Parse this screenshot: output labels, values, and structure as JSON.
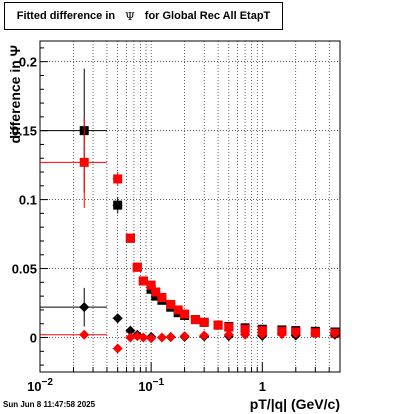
{
  "title": {
    "prefix": "Fitted difference in",
    "symbol": "Ψ",
    "suffix": "for Global Rec All EtapT"
  },
  "timestamp": "Sun Jun  8 11:47:58 2025",
  "chart_data": {
    "type": "scatter",
    "title": "Fitted difference in Ψ for Global Rec All EtapT",
    "xlabel": "pT/|q| (GeV/c)",
    "ylabel": "difference in Ψ",
    "x_scale": "log",
    "xlim": [
      0.01,
      5
    ],
    "ylim": [
      -0.025,
      0.215
    ],
    "grid": true,
    "y_ticks": [
      {
        "value": 0,
        "label": "0"
      },
      {
        "value": 0.05,
        "label": "0.05"
      },
      {
        "value": 0.1,
        "label": "0.1"
      },
      {
        "value": 0.15,
        "label": "0.15"
      },
      {
        "value": 0.2,
        "label": "0.2"
      }
    ],
    "x_ticks": [
      {
        "value": 0.01,
        "base": "10",
        "exp": "−2"
      },
      {
        "value": 0.1,
        "base": "10",
        "exp": "−1"
      },
      {
        "value": 1,
        "base": "1",
        "exp": ""
      }
    ],
    "series": [
      {
        "color": "#000000",
        "marker": "square",
        "points": [
          {
            "x": 0.025,
            "y": 0.15,
            "xerr": [
              0.01,
              0.04
            ],
            "yerr": 0.045
          },
          {
            "x": 0.05,
            "y": 0.096,
            "xerr": [
              0.045,
              0.055
            ],
            "yerr": 0.006
          },
          {
            "x": 0.065,
            "y": 0.072,
            "xerr": [
              0.06,
              0.07
            ],
            "yerr": 0.002
          },
          {
            "x": 0.075,
            "y": 0.051
          },
          {
            "x": 0.085,
            "y": 0.041
          },
          {
            "x": 0.1,
            "y": 0.035
          },
          {
            "x": 0.11,
            "y": 0.03
          },
          {
            "x": 0.125,
            "y": 0.027
          },
          {
            "x": 0.15,
            "y": 0.022
          },
          {
            "x": 0.175,
            "y": 0.018
          },
          {
            "x": 0.2,
            "y": 0.016
          },
          {
            "x": 0.25,
            "y": 0.013
          },
          {
            "x": 0.3,
            "y": 0.011
          },
          {
            "x": 0.4,
            "y": 0.009
          },
          {
            "x": 0.5,
            "y": 0.008
          },
          {
            "x": 0.7,
            "y": 0.007
          },
          {
            "x": 1.0,
            "y": 0.006
          },
          {
            "x": 1.5,
            "y": 0.0055
          },
          {
            "x": 2.0,
            "y": 0.005
          },
          {
            "x": 3.0,
            "y": 0.0045
          },
          {
            "x": 4.5,
            "y": 0.004
          }
        ]
      },
      {
        "color": "#ff0000",
        "marker": "square",
        "points": [
          {
            "x": 0.025,
            "y": 0.127,
            "xerr": [
              0.01,
              0.04
            ],
            "yerr": 0.033
          },
          {
            "x": 0.05,
            "y": 0.115,
            "xerr": [
              0.045,
              0.055
            ],
            "yerr": 0.005
          },
          {
            "x": 0.065,
            "y": 0.072,
            "xerr": [
              0.06,
              0.07
            ],
            "yerr": 0.002
          },
          {
            "x": 0.075,
            "y": 0.051
          },
          {
            "x": 0.085,
            "y": 0.041
          },
          {
            "x": 0.1,
            "y": 0.038
          },
          {
            "x": 0.11,
            "y": 0.033
          },
          {
            "x": 0.125,
            "y": 0.029
          },
          {
            "x": 0.15,
            "y": 0.024
          },
          {
            "x": 0.175,
            "y": 0.02
          },
          {
            "x": 0.2,
            "y": 0.017
          },
          {
            "x": 0.25,
            "y": 0.013
          },
          {
            "x": 0.3,
            "y": 0.011
          },
          {
            "x": 0.4,
            "y": 0.009
          },
          {
            "x": 0.5,
            "y": 0.0075
          },
          {
            "x": 0.7,
            "y": 0.006
          },
          {
            "x": 1.0,
            "y": 0.005
          },
          {
            "x": 1.5,
            "y": 0.0045
          },
          {
            "x": 2.0,
            "y": 0.004
          },
          {
            "x": 3.0,
            "y": 0.0035
          },
          {
            "x": 4.5,
            "y": 0.003
          }
        ]
      },
      {
        "color": "#000000",
        "marker": "diamond",
        "points": [
          {
            "x": 0.025,
            "y": 0.022,
            "xerr": [
              0.01,
              0.04
            ],
            "yerr": 0.014
          },
          {
            "x": 0.05,
            "y": 0.014,
            "xerr": [
              0.045,
              0.055
            ],
            "yerr": 0.002
          },
          {
            "x": 0.065,
            "y": 0.005
          },
          {
            "x": 0.075,
            "y": 0.002
          },
          {
            "x": 0.1,
            "y": 0.0005
          },
          {
            "x": 0.15,
            "y": 0.0003
          },
          {
            "x": 0.2,
            "y": 0.0005
          },
          {
            "x": 0.3,
            "y": 0.0008
          },
          {
            "x": 0.5,
            "y": 0.001
          },
          {
            "x": 1.0,
            "y": 0.0012
          },
          {
            "x": 2.0,
            "y": 0.0015
          },
          {
            "x": 4.5,
            "y": 0.002
          }
        ]
      },
      {
        "color": "#ff0000",
        "marker": "diamond",
        "points": [
          {
            "x": 0.025,
            "y": 0.002,
            "xerr": [
              0.01,
              0.04
            ],
            "yerr": 0.002
          },
          {
            "x": 0.05,
            "y": -0.008,
            "xerr": [
              0.045,
              0.055
            ],
            "yerr": 0.001
          },
          {
            "x": 0.065,
            "y": 0.0
          },
          {
            "x": 0.075,
            "y": 0.001
          },
          {
            "x": 0.085,
            "y": 0.0
          },
          {
            "x": 0.1,
            "y": -0.0005
          },
          {
            "x": 0.125,
            "y": 0.0
          },
          {
            "x": 0.15,
            "y": 0.0005
          },
          {
            "x": 0.2,
            "y": 0.001
          },
          {
            "x": 0.3,
            "y": 0.0015
          },
          {
            "x": 0.5,
            "y": 0.002
          },
          {
            "x": 0.7,
            "y": 0.002
          },
          {
            "x": 1.0,
            "y": 0.0025
          },
          {
            "x": 1.5,
            "y": 0.0025
          },
          {
            "x": 2.0,
            "y": 0.003
          },
          {
            "x": 3.0,
            "y": 0.003
          },
          {
            "x": 4.5,
            "y": 0.003
          }
        ]
      }
    ]
  }
}
